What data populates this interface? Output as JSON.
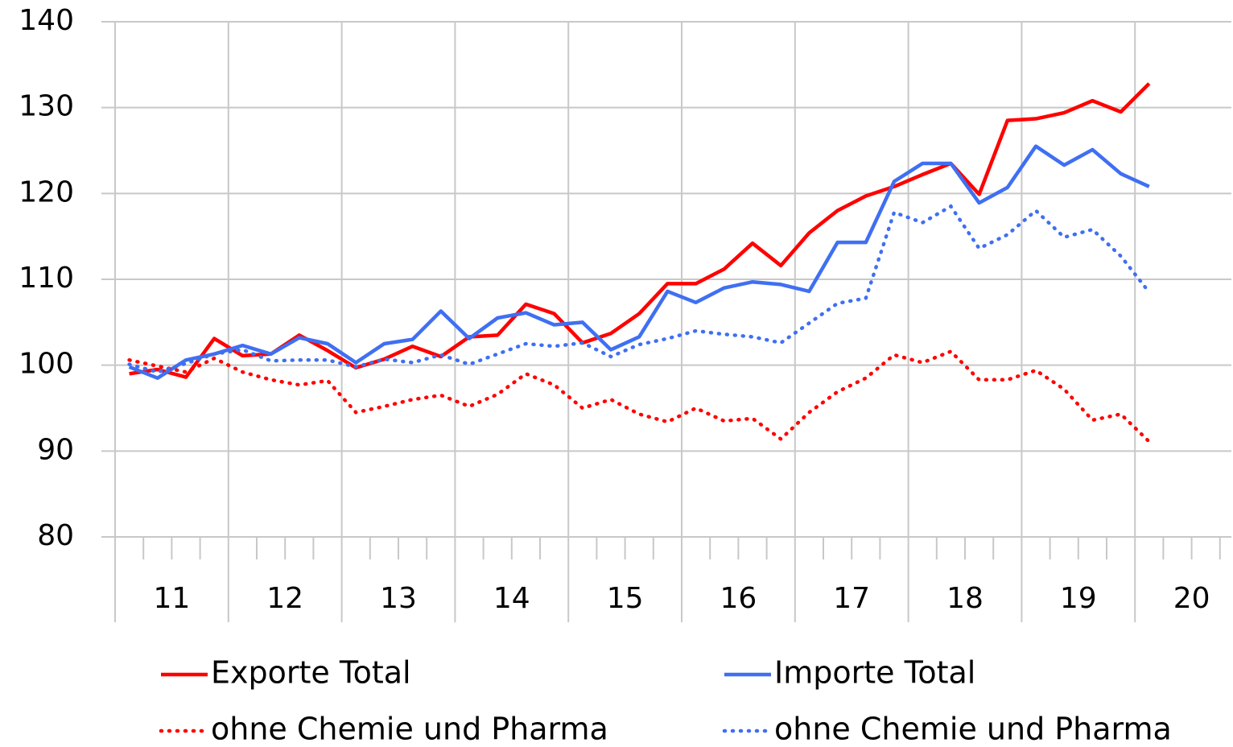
{
  "chart_data": {
    "type": "line",
    "categories": [
      null,
      null,
      null,
      null,
      null,
      null,
      null,
      null,
      null,
      null,
      null,
      null,
      null,
      null,
      null,
      null,
      null,
      null,
      null,
      null,
      null,
      null,
      null,
      null,
      null,
      null,
      null,
      null,
      null,
      null,
      null,
      null,
      null,
      null,
      null,
      null,
      null,
      null,
      null,
      null
    ],
    "category_groups": [
      "11",
      "12",
      "13",
      "14",
      "15",
      "16",
      "17",
      "18",
      "19",
      "20"
    ],
    "ylim": [
      80,
      140
    ],
    "yticks": [
      80,
      90,
      100,
      110,
      120,
      130,
      140
    ],
    "grid": true,
    "series": [
      {
        "name": "Exporte Total",
        "color": "#ff0000",
        "style": "solid",
        "values": [
          99.0,
          99.5,
          98.6,
          103.1,
          101.1,
          101.3,
          103.5,
          101.7,
          99.7,
          100.7,
          102.2,
          101.0,
          103.3,
          103.5,
          107.1,
          106.0,
          102.6,
          103.7,
          106.0,
          109.5,
          109.5,
          111.2,
          114.2,
          111.6,
          115.4,
          118.0,
          119.7,
          120.8,
          122.2,
          123.5,
          119.9,
          128.5,
          128.7,
          129.4,
          130.8,
          129.5,
          132.8,
          null,
          null,
          null
        ]
      },
      {
        "name": "Importe Total",
        "color": "#3f6ff2",
        "style": "solid",
        "values": [
          99.8,
          98.5,
          100.6,
          101.3,
          102.3,
          101.3,
          103.2,
          102.5,
          100.3,
          102.5,
          103.0,
          106.3,
          103.1,
          105.5,
          106.1,
          104.7,
          105.0,
          101.8,
          103.3,
          108.6,
          107.3,
          109.0,
          109.7,
          109.4,
          108.6,
          114.3,
          114.3,
          121.4,
          123.5,
          123.5,
          118.9,
          120.7,
          125.5,
          123.3,
          125.1,
          122.3,
          120.8,
          null,
          null,
          null
        ]
      },
      {
        "name": "ohne Chemie und Pharma",
        "color": "#ff0000",
        "style": "dotted",
        "values": [
          100.6,
          99.9,
          99.2,
          100.8,
          99.2,
          98.3,
          97.7,
          98.2,
          94.5,
          95.2,
          96.0,
          96.5,
          95.2,
          96.6,
          99.0,
          97.7,
          95.0,
          96.0,
          94.3,
          93.4,
          95.0,
          93.5,
          93.8,
          91.4,
          94.5,
          96.9,
          98.5,
          101.2,
          100.3,
          101.6,
          98.3,
          98.3,
          99.4,
          97.2,
          93.6,
          94.3,
          91.1,
          null,
          null,
          null
        ]
      },
      {
        "name": "ohne Chemie und Pharma",
        "color": "#3f6ff2",
        "style": "dotted",
        "values": [
          100.1,
          99.2,
          100.2,
          101.3,
          101.8,
          100.5,
          100.6,
          100.6,
          99.8,
          100.7,
          100.3,
          101.2,
          100.1,
          101.3,
          102.5,
          102.2,
          102.6,
          101.0,
          102.4,
          103.1,
          104.0,
          103.6,
          103.3,
          102.6,
          104.9,
          107.2,
          107.8,
          117.8,
          116.6,
          118.5,
          113.6,
          115.2,
          118.0,
          114.9,
          115.8,
          112.7,
          108.5,
          null,
          null,
          null
        ]
      }
    ]
  }
}
